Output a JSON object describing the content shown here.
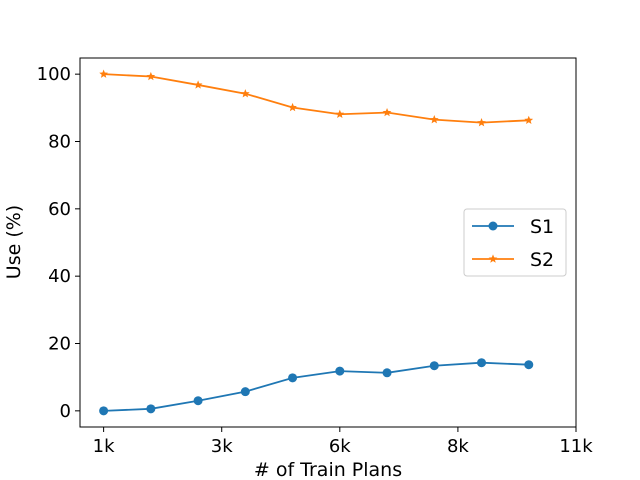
{
  "chart_data": {
    "type": "line",
    "title": "",
    "xlabel": "# of Train Plans",
    "ylabel": "Use (%)",
    "x_ticks": [
      {
        "value": 1,
        "label": "1k"
      },
      {
        "value": 3.5,
        "label": "3k"
      },
      {
        "value": 6,
        "label": "6k"
      },
      {
        "value": 8.5,
        "label": "8k"
      },
      {
        "value": 11,
        "label": "11k"
      }
    ],
    "y_ticks": [
      0,
      20,
      40,
      60,
      80,
      100
    ],
    "xlim": [
      0.5,
      11
    ],
    "ylim": [
      -4.8,
      104.8
    ],
    "x": [
      1,
      2,
      3,
      4,
      5,
      6,
      7,
      8,
      9,
      10
    ],
    "series": [
      {
        "name": "S1",
        "color": "#1f77b4",
        "marker": "circle",
        "values": [
          0,
          0.6,
          3.0,
          5.7,
          9.8,
          11.8,
          11.3,
          13.4,
          14.3,
          13.7
        ]
      },
      {
        "name": "S2",
        "color": "#ff7f0e",
        "marker": "star",
        "values": [
          100,
          99.3,
          96.8,
          94.2,
          90.1,
          88.1,
          88.6,
          86.5,
          85.6,
          86.3
        ]
      }
    ],
    "legend": {
      "position": "center-right"
    },
    "grid": false
  }
}
